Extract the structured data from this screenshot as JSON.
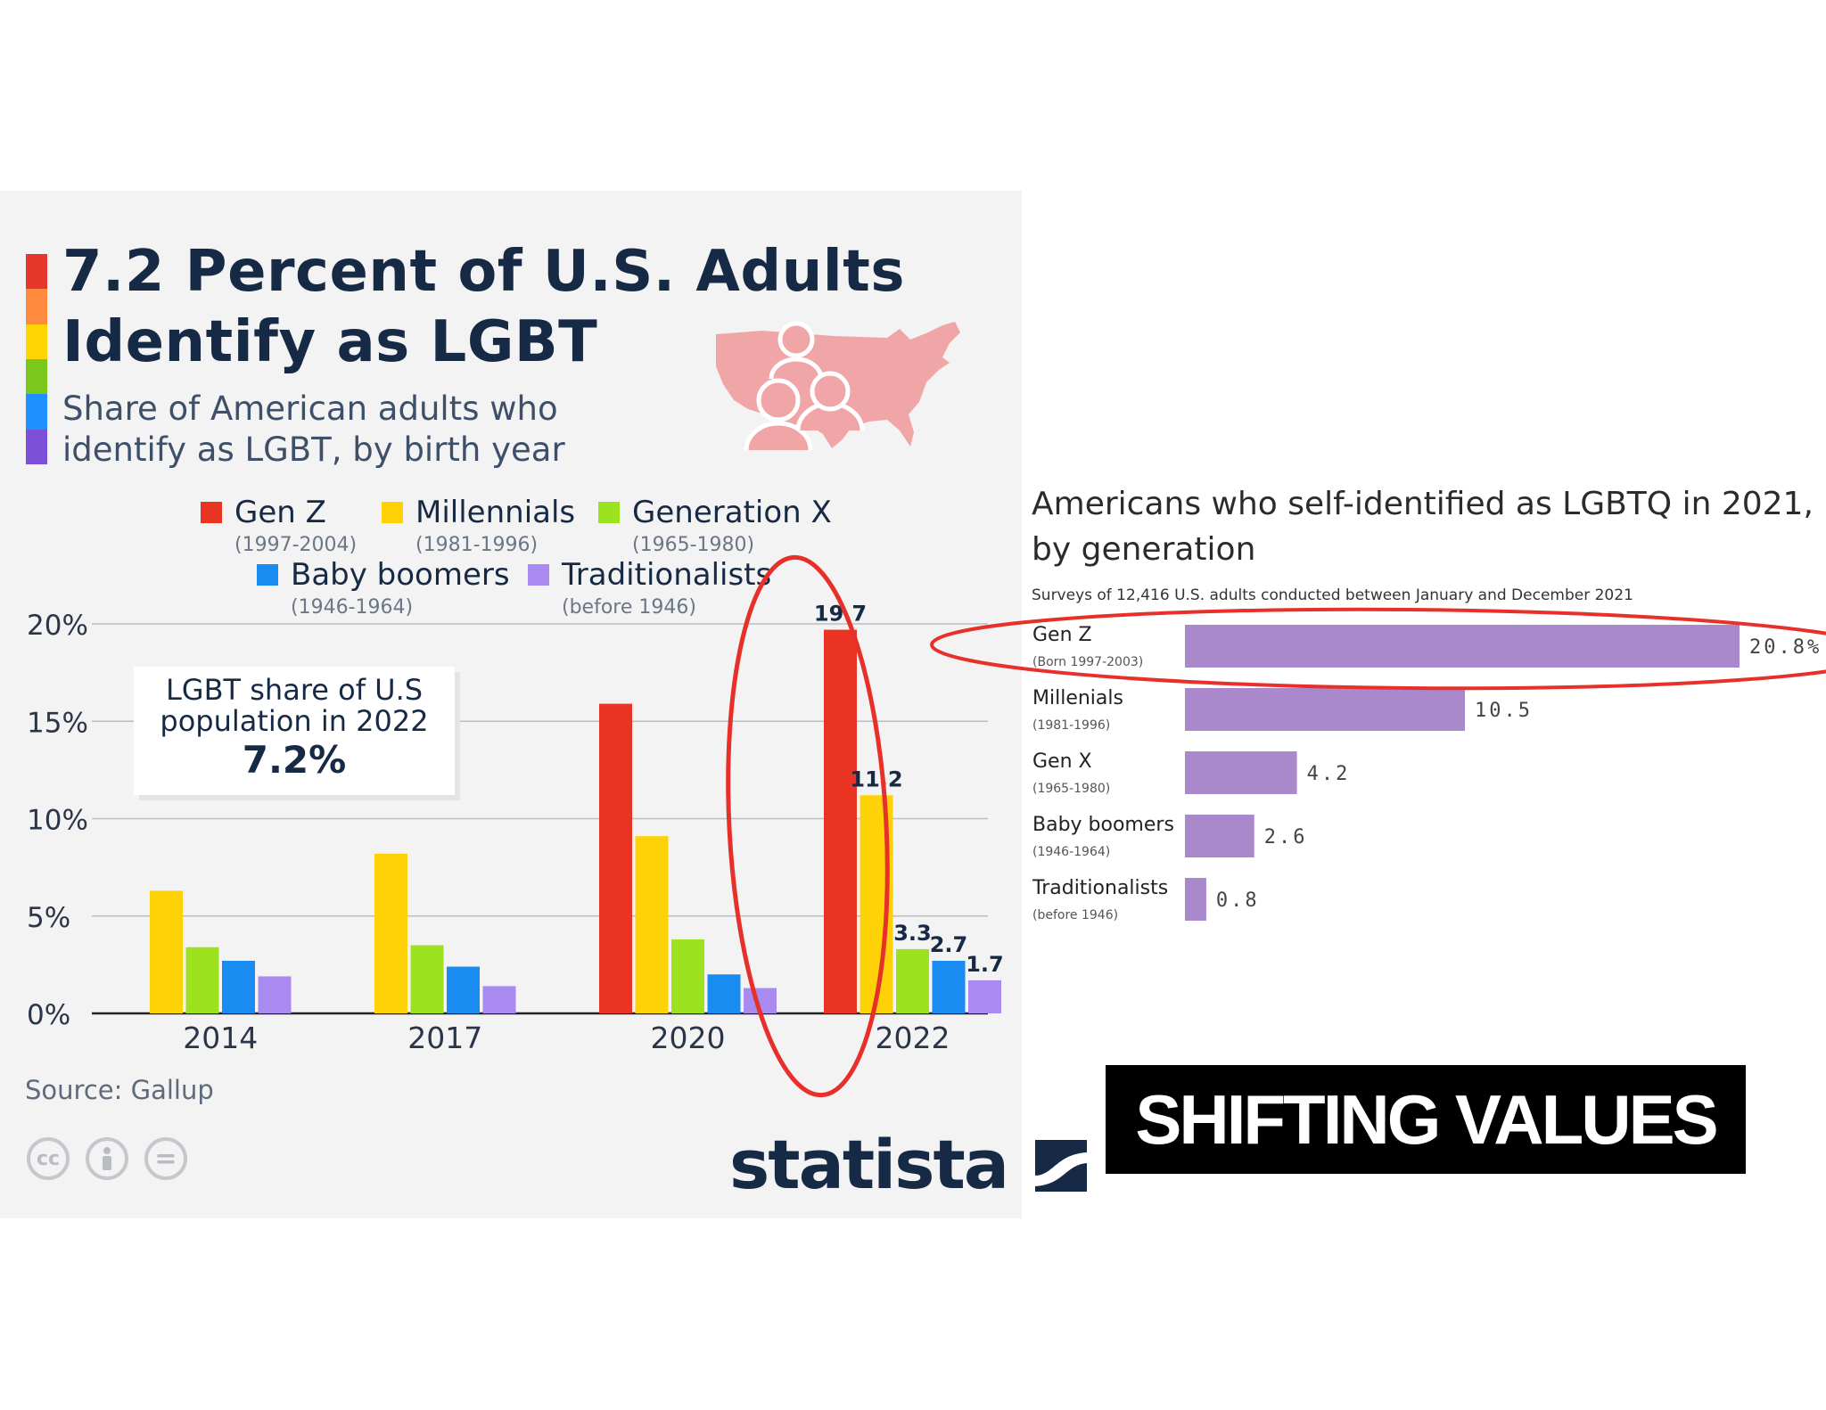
{
  "left": {
    "title_line1": "7.2 Percent of U.S. Adults",
    "title_line2": "Identify as LGBT",
    "subtitle_line1": "Share of American adults who",
    "subtitle_line2": "identify as LGBT, by birth year",
    "rainbow_colors": [
      "#e7362c",
      "#ff8a3d",
      "#ffd400",
      "#7bc81c",
      "#1e90ff",
      "#7b4fd6"
    ],
    "legend": [
      {
        "name": "Gen Z",
        "years": "(1997-2004)",
        "color": "#ea3423"
      },
      {
        "name": "Millennials",
        "years": "(1981-1996)",
        "color": "#ffd208"
      },
      {
        "name": "Generation X",
        "years": "(1965-1980)",
        "color": "#9de21f"
      },
      {
        "name": "Baby boomers",
        "years": "(1946-1964)",
        "color": "#1a8bf0"
      },
      {
        "name": "Traditionalists",
        "years": "(before 1946)",
        "color": "#a98af0"
      }
    ],
    "callout_line1": "LGBT share of U.S",
    "callout_line2": "population in 2022",
    "callout_value": "7.2%",
    "source": "Source: Gallup",
    "cc_icons": [
      "cc-icon",
      "attribution-icon",
      "no-derivatives-icon"
    ],
    "cc_glyphs": [
      "cc",
      "὆4",
      "="
    ],
    "brand": "statista",
    "map_color": "#f0a6a6",
    "circle_color": "#e8302a"
  },
  "chart_data": [
    {
      "type": "bar",
      "ylim": [
        0,
        20
      ],
      "y_ticks": [
        "0%",
        "5%",
        "10%",
        "15%",
        "20%"
      ],
      "categories": [
        "2014",
        "2017",
        "2020",
        "2022"
      ],
      "series": [
        {
          "name": "Gen Z",
          "values": [
            null,
            null,
            15.9,
            19.7
          ]
        },
        {
          "name": "Millennials",
          "values": [
            6.3,
            8.2,
            9.1,
            11.2
          ]
        },
        {
          "name": "Generation X",
          "values": [
            3.4,
            3.5,
            3.8,
            3.3
          ]
        },
        {
          "name": "Baby boomers",
          "values": [
            2.7,
            2.4,
            2.0,
            2.7
          ]
        },
        {
          "name": "Traditionalists",
          "values": [
            1.9,
            1.4,
            1.3,
            1.7
          ]
        }
      ],
      "data_labels": {
        "2022": [
          "19.7",
          "11.2",
          "3.3",
          "2.7",
          "1.7"
        ]
      }
    },
    {
      "type": "bar",
      "orientation": "horizontal",
      "title": "Americans who self-identified as LGBTQ in 2021, by generation",
      "subtitle": "Surveys of 12,416 U.S. adults conducted between January and December 2021",
      "bar_color": "#aa88cc",
      "xlim": [
        0,
        20.8
      ],
      "categories": [
        {
          "label": "Gen Z",
          "sub": "(Born 1997-2003)"
        },
        {
          "label": "Millenials",
          "sub": "(1981-1996)"
        },
        {
          "label": "Gen X",
          "sub": "(1965-1980)"
        },
        {
          "label": "Baby boomers",
          "sub": "(1946-1964)"
        },
        {
          "label": "Traditionalists",
          "sub": "(before 1946)"
        }
      ],
      "values": [
        20.8,
        10.5,
        4.2,
        2.6,
        0.8
      ],
      "value_labels": [
        "20.8%",
        "10.5",
        "4.2",
        "2.6",
        "0.8"
      ]
    }
  ],
  "right": {
    "title_line1": "Americans who self-identified as LGBTQ in 2021,",
    "title_line2": "by generation",
    "subtitle": "Surveys of 12,416 U.S. adults conducted between January and December 2021"
  },
  "banner": "SHIFTING VALUES"
}
